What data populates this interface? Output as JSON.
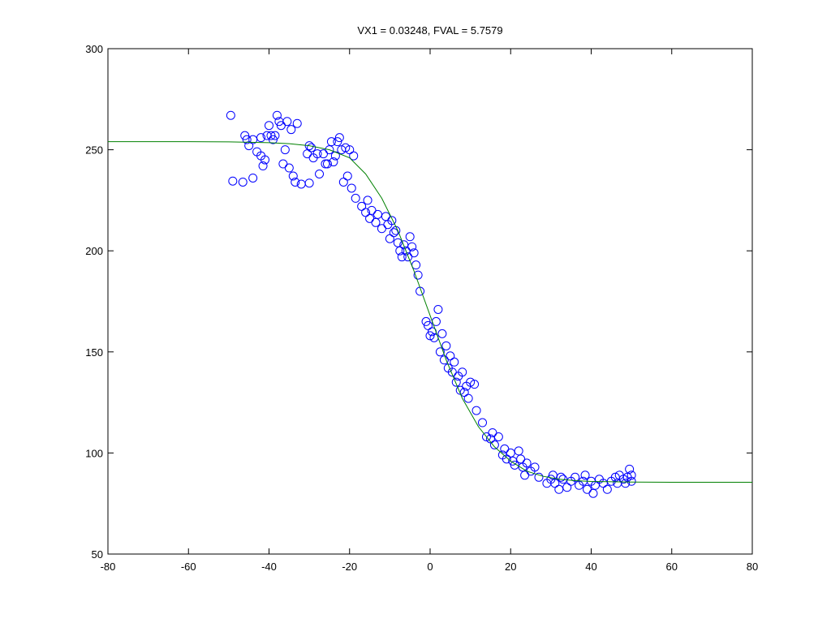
{
  "chart_data": {
    "type": "scatter",
    "title": "VX1 = 0.03248, FVAL = 5.7579",
    "xlim": [
      -80,
      80
    ],
    "xticks": [
      -80,
      -60,
      -40,
      -20,
      0,
      20,
      40,
      60,
      80
    ],
    "ylim": [
      50,
      300
    ],
    "yticks": [
      50,
      100,
      150,
      200,
      250,
      300
    ],
    "series": [
      {
        "type": "scatter",
        "color": "#0000ff",
        "x": [
          -49.5,
          -49,
          -46.5,
          -46,
          -45.5,
          -45,
          -44,
          -44,
          -43,
          -42,
          -42,
          -41.5,
          -41,
          -40.5,
          -40,
          -39.5,
          -39,
          -38.5,
          -38,
          -37.5,
          -37,
          -36.5,
          -36,
          -35.5,
          -35,
          -34.5,
          -34,
          -33.5,
          -33,
          -32,
          -30.5,
          -30,
          -30,
          -29.5,
          -29,
          -28,
          -27.5,
          -26.5,
          -26,
          -25.5,
          -25,
          -24.5,
          -24,
          -23.5,
          -23,
          -22.5,
          -22,
          -21.5,
          -21,
          -20.5,
          -20,
          -19.5,
          -19,
          -18.5,
          -17,
          -16,
          -15.5,
          -15,
          -14.5,
          -13.5,
          -13,
          -12,
          -11,
          -10.5,
          -10,
          -9.5,
          -9,
          -8.5,
          -8,
          -7.5,
          -7,
          -6.5,
          -6,
          -5.5,
          -5,
          -4.5,
          -4,
          -3.5,
          -3,
          -2.5,
          -1,
          -0.5,
          0,
          0.5,
          1,
          1.5,
          2,
          2.5,
          3,
          3.5,
          4,
          4.5,
          5,
          5.5,
          6,
          6.5,
          7,
          7.5,
          8,
          8.5,
          9,
          9.5,
          10,
          11,
          11.5,
          13,
          14,
          15,
          15.5,
          16,
          17,
          18,
          18.5,
          19,
          20,
          20.5,
          21,
          22,
          22.5,
          23,
          23.5,
          24,
          25,
          26,
          27,
          29,
          30,
          30.5,
          31,
          32,
          32.5,
          33,
          34,
          35,
          36,
          37,
          38,
          38.5,
          39,
          40,
          40.5,
          41,
          42,
          43,
          44,
          45,
          46,
          46.5,
          47,
          48,
          48.5,
          49,
          49.5,
          50,
          50
        ],
        "values": [
          267,
          234.5,
          234,
          257,
          255,
          252,
          236,
          255,
          249,
          247,
          256,
          242,
          245,
          257,
          262,
          257,
          255,
          257,
          267,
          264,
          262,
          243,
          250,
          264,
          241,
          260,
          237,
          234,
          263,
          233,
          248,
          233.5,
          252,
          251,
          246,
          248,
          238,
          248,
          243,
          243,
          250,
          254,
          244,
          247,
          254,
          256,
          250,
          234,
          251,
          237,
          250,
          231,
          247,
          226,
          222,
          219,
          225,
          216,
          220,
          214,
          218,
          211,
          217,
          213,
          206,
          215,
          209,
          210,
          204,
          200,
          197,
          203,
          200,
          197,
          207,
          202,
          199,
          193,
          188,
          180,
          165,
          163,
          158,
          160,
          157,
          165,
          171,
          150,
          159,
          146,
          153,
          142,
          148,
          140,
          145,
          135,
          138,
          131,
          140,
          130,
          133,
          127,
          135,
          134,
          121,
          115,
          108,
          107,
          110,
          104,
          108,
          99,
          102,
          97,
          100,
          96,
          94,
          101,
          97,
          93,
          89,
          95,
          91,
          93,
          88,
          85,
          87,
          89,
          85,
          82,
          88,
          87,
          83,
          86,
          88,
          84,
          86,
          89,
          82,
          86,
          80,
          84,
          87,
          85,
          82,
          86,
          88,
          85,
          89,
          87,
          85,
          88,
          92,
          86,
          89
        ]
      },
      {
        "type": "line",
        "color": "#008000",
        "x": [
          -80,
          -60,
          -50,
          -40,
          -35,
          -30,
          -25,
          -20,
          -16,
          -12,
          -8,
          -4,
          0,
          4,
          8,
          12,
          16,
          20,
          24,
          28,
          32,
          36,
          40,
          50,
          60,
          80
        ],
        "values": [
          254,
          254,
          253.9,
          253.5,
          253,
          252,
          250,
          246,
          238,
          226,
          210,
          190,
          168,
          146,
          127,
          113,
          103,
          96,
          91,
          88.5,
          87,
          86.3,
          85.9,
          85.6,
          85.5,
          85.5
        ]
      }
    ]
  }
}
